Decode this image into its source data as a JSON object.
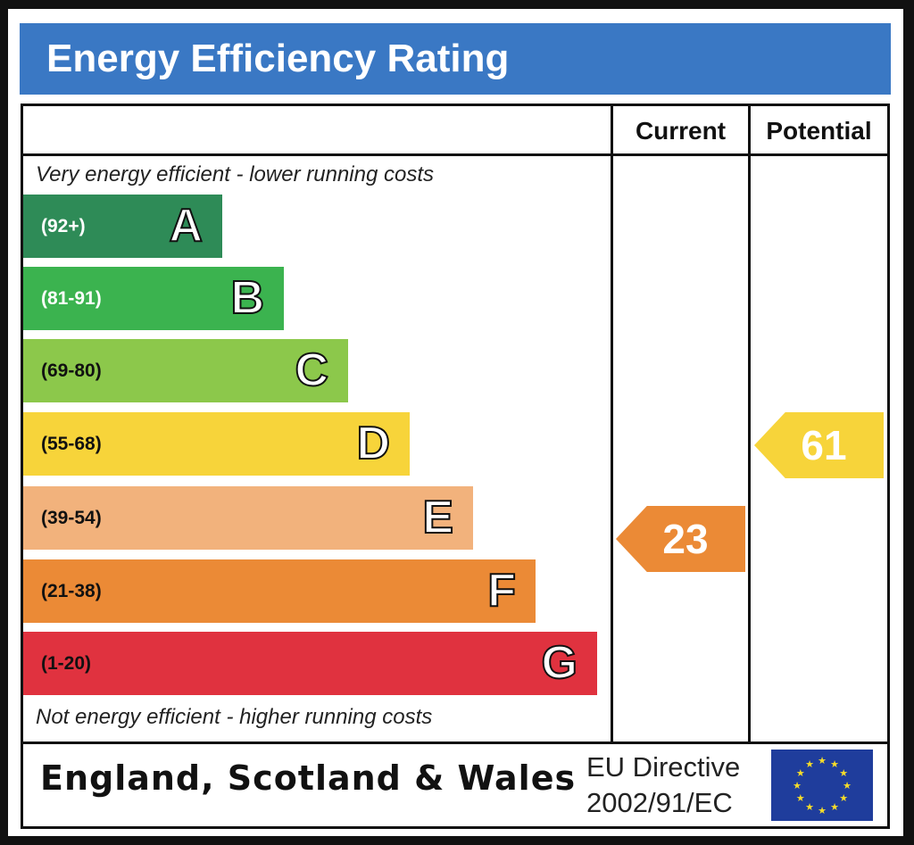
{
  "title": "Energy Efficiency Rating",
  "columns": {
    "current": "Current",
    "potential": "Potential"
  },
  "top_note": "Very energy efficient - lower running costs",
  "bottom_note": "Not energy efficient - higher running costs",
  "footer": {
    "country": "England, Scotland & Wales",
    "directive_line1": "EU Directive",
    "directive_line2": "2002/91/EC",
    "flag_icon": "eu-flag-icon"
  },
  "chart_data": {
    "type": "bar",
    "title": "Energy Efficiency Rating",
    "bands": [
      {
        "letter": "A",
        "range": "(92+)",
        "color": "#2e8b57",
        "text_color": "#ffffff"
      },
      {
        "letter": "B",
        "range": "(81-91)",
        "color": "#3bb34f",
        "text_color": "#ffffff"
      },
      {
        "letter": "C",
        "range": "(69-80)",
        "color": "#8cc84b",
        "text_color": "#111111"
      },
      {
        "letter": "D",
        "range": "(55-68)",
        "color": "#f7d43a",
        "text_color": "#111111"
      },
      {
        "letter": "E",
        "range": "(39-54)",
        "color": "#f2b27c",
        "text_color": "#111111"
      },
      {
        "letter": "F",
        "range": "(21-38)",
        "color": "#eb8a36",
        "text_color": "#111111"
      },
      {
        "letter": "G",
        "range": "(1-20)",
        "color": "#e0323f",
        "text_color": "#111111"
      }
    ],
    "current": {
      "value": "23",
      "band": "F",
      "color": "#eb8a36"
    },
    "potential": {
      "value": "61",
      "band": "D",
      "color": "#f7d43a"
    }
  }
}
